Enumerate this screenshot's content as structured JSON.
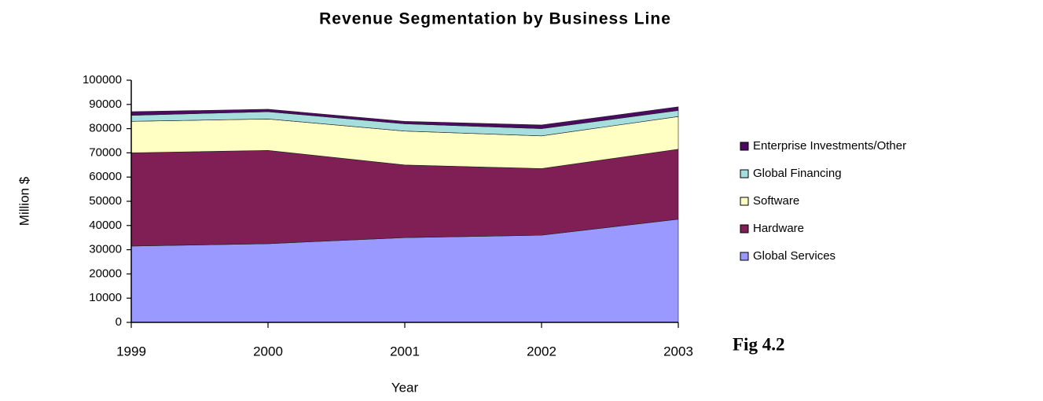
{
  "chart_data": {
    "type": "stacked_area",
    "title": "Revenue Segmentation by Business Line",
    "xlabel": "Year",
    "ylabel": "Million $",
    "annotation": "Fig 4.2",
    "x": [
      1999,
      2000,
      2001,
      2002,
      2003
    ],
    "xlim": [
      1999,
      2003
    ],
    "xticks": [
      1999,
      2000,
      2001,
      2002,
      2003
    ],
    "ylim": [
      0,
      100000
    ],
    "yticks": [
      0,
      10000,
      20000,
      30000,
      40000,
      50000,
      60000,
      70000,
      80000,
      90000,
      100000
    ],
    "grid": false,
    "legend": "right",
    "series": [
      {
        "name": "Global Services",
        "color": "#9999ff",
        "values": [
          31500,
          32500,
          35000,
          36000,
          42600
        ]
      },
      {
        "name": "Hardware",
        "color": "#7f1f56",
        "values": [
          38500,
          38500,
          30000,
          27500,
          28900
        ]
      },
      {
        "name": "Software",
        "color": "#ffffc4",
        "values": [
          13000,
          13000,
          14000,
          13500,
          13500
        ]
      },
      {
        "name": "Global Financing",
        "color": "#a6dede",
        "values": [
          2500,
          3000,
          3000,
          3000,
          2500
        ]
      },
      {
        "name": "Enterprise Investments/Other",
        "color": "#4d0a63",
        "values": [
          1500,
          1000,
          1000,
          1500,
          1500
        ]
      }
    ]
  }
}
